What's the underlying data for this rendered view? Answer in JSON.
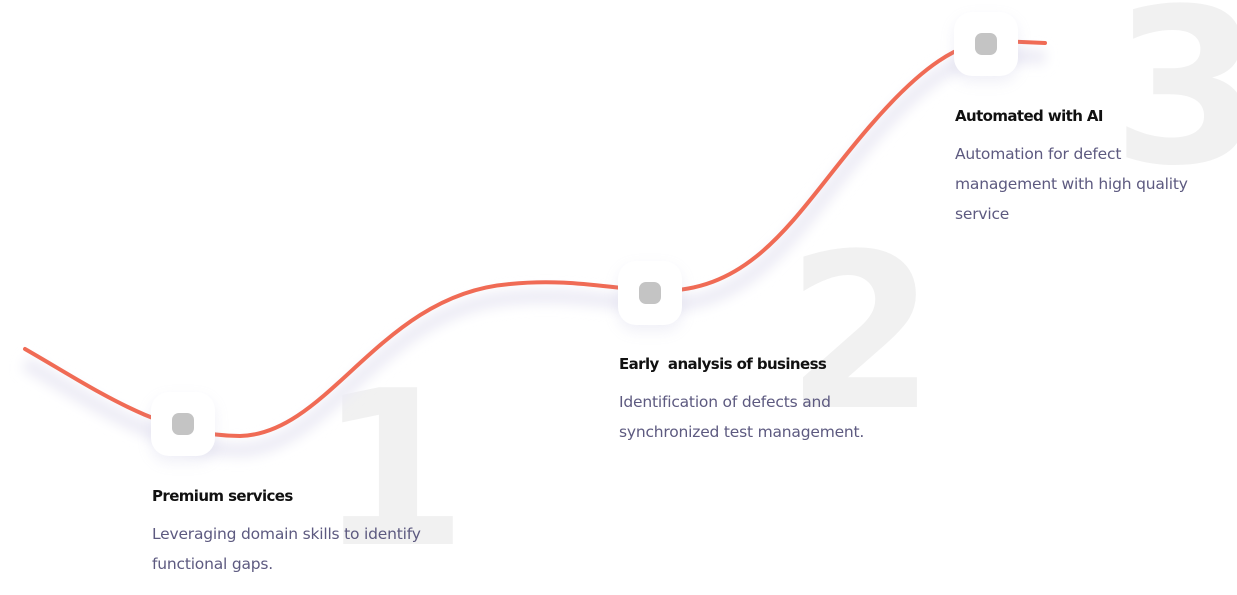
{
  "steps": [
    {
      "number": "1",
      "title": "Premium services",
      "description": "Leveraging domain skills to identify functional gaps."
    },
    {
      "number": "2",
      "title": "Early  analysis of business",
      "description": "Identification of defects and synchronized test management."
    },
    {
      "number": "3",
      "title": "Automated with AI",
      "description": "Automation for defect management with high quality service"
    }
  ],
  "colors": {
    "line": "#f06b55",
    "shadow": "#ecebf5",
    "node_dot": "#c4c4c4",
    "number_watermark": "#f1f1f1",
    "title": "#111111",
    "description": "#5d5a80"
  }
}
